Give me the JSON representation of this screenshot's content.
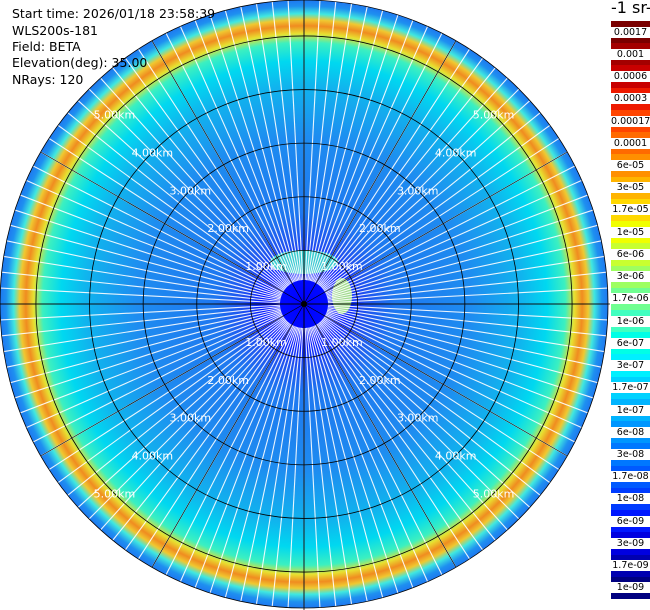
{
  "info": {
    "start_time": "Start time: 2026/01/18 23:58:39",
    "instrument": "WLS200s-181",
    "field": "Field: BETA",
    "elevation": "Elevation(deg): 35.00",
    "nrays": "NRays: 120"
  },
  "chart_data": {
    "type": "heatmap",
    "projection": "polar-ppi",
    "field": "BETA",
    "elevation_deg": 35.0,
    "n_rays": 120,
    "range_rings_km": [
      1.0,
      2.0,
      3.0,
      4.0,
      5.0
    ],
    "ring_labels": [
      "1.00km",
      "2.00km",
      "3.00km",
      "4.00km",
      "5.00km"
    ],
    "max_range_km": 5.67,
    "colorbar": {
      "title": "-1 sr-",
      "labels": [
        "0.0017",
        "0.001",
        "0.0006",
        "0.0003",
        "0.00017",
        "0.0001",
        "6e-05",
        "3e-05",
        "1.7e-05",
        "1e-05",
        "6e-06",
        "3e-06",
        "1.7e-06",
        "1e-06",
        "6e-07",
        "3e-07",
        "1.7e-07",
        "1e-07",
        "6e-08",
        "3e-08",
        "1.7e-08",
        "1e-08",
        "6e-09",
        "3e-09",
        "1.7e-09",
        "1e-09"
      ],
      "colors": [
        "#7a0000",
        "#a30000",
        "#c80000",
        "#ee1a00",
        "#ff4500",
        "#ff6a00",
        "#ff8f00",
        "#ffb400",
        "#ffd800",
        "#f0ff00",
        "#c8ff30",
        "#9dff60",
        "#70ff90",
        "#40ffc0",
        "#00ffe6",
        "#00f0ff",
        "#00d2ff",
        "#00b4ff",
        "#0096ff",
        "#0078ff",
        "#005aff",
        "#003cff",
        "#0018ff",
        "#0000e0",
        "#0000b0",
        "#000080"
      ]
    }
  }
}
